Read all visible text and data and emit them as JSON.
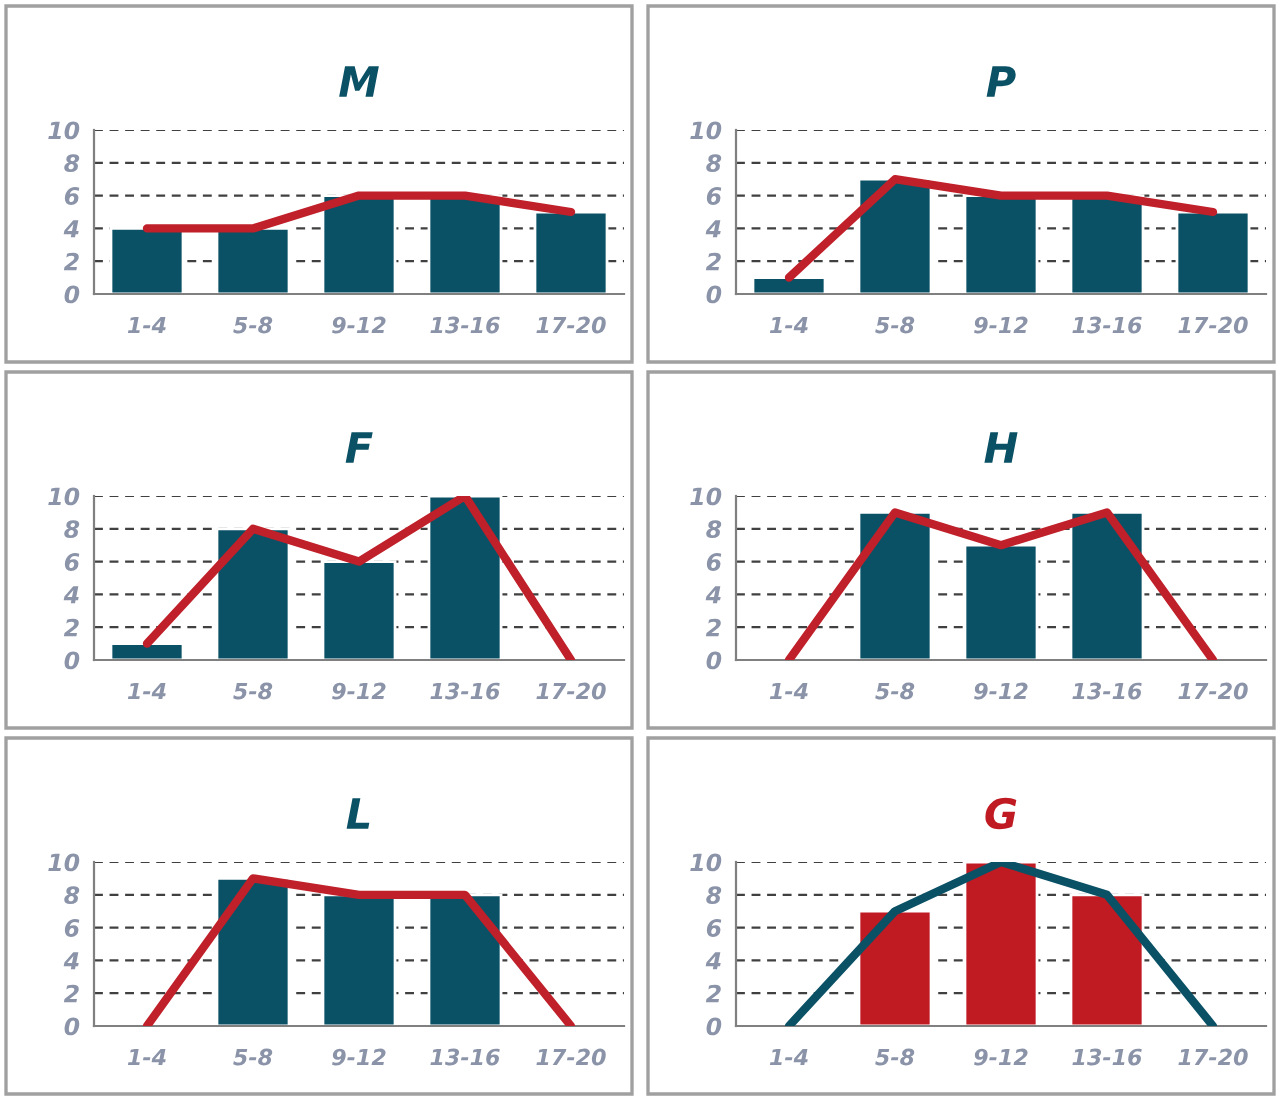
{
  "chart_data": [
    {
      "type": "bar",
      "title": "M",
      "categories": [
        "1-4",
        "5-8",
        "9-12",
        "13-16",
        "17-20"
      ],
      "ylim": [
        0,
        10
      ],
      "yticks": [
        0,
        2,
        4,
        6,
        8,
        10
      ],
      "grid": "y",
      "series": [
        {
          "color": "#0b5166",
          "values": [
            4,
            4,
            6,
            6,
            5
          ]
        },
        {
          "type": "line",
          "color": "#c0202a",
          "values": [
            4,
            4,
            6,
            6,
            5
          ]
        }
      ]
    },
    {
      "type": "bar",
      "title": "P",
      "categories": [
        "1-4",
        "5-8",
        "9-12",
        "13-16",
        "17-20"
      ],
      "ylim": [
        0,
        10
      ],
      "yticks": [
        0,
        2,
        4,
        6,
        8,
        10
      ],
      "grid": "y",
      "series": [
        {
          "color": "#0b5166",
          "values": [
            1,
            7,
            6,
            6,
            5
          ]
        },
        {
          "type": "line",
          "color": "#c0202a",
          "values": [
            1,
            7,
            6,
            6,
            5
          ]
        }
      ]
    },
    {
      "type": "bar",
      "title": "F",
      "categories": [
        "1-4",
        "5-8",
        "9-12",
        "13-16",
        "17-20"
      ],
      "ylim": [
        0,
        10
      ],
      "yticks": [
        0,
        2,
        4,
        6,
        8,
        10
      ],
      "grid": "y",
      "series": [
        {
          "color": "#0b5166",
          "values": [
            1,
            8,
            6,
            10,
            null
          ]
        },
        {
          "type": "line",
          "color": "#c0202a",
          "values": [
            1,
            8,
            6,
            10,
            0
          ]
        }
      ]
    },
    {
      "type": "bar",
      "title": "H",
      "categories": [
        "1-4",
        "5-8",
        "9-12",
        "13-16",
        "17-20"
      ],
      "ylim": [
        0,
        10
      ],
      "yticks": [
        0,
        2,
        4,
        6,
        8,
        10
      ],
      "grid": "y",
      "series": [
        {
          "color": "#0b5166",
          "values": [
            null,
            9,
            7,
            9,
            null
          ]
        },
        {
          "type": "line",
          "color": "#c0202a",
          "values": [
            0,
            9,
            7,
            9,
            0
          ]
        }
      ]
    },
    {
      "type": "bar",
      "title": "L",
      "categories": [
        "1-4",
        "5-8",
        "9-12",
        "13-16",
        "17-20"
      ],
      "ylim": [
        0,
        10
      ],
      "yticks": [
        0,
        2,
        4,
        6,
        8,
        10
      ],
      "grid": "y",
      "series": [
        {
          "color": "#0b5166",
          "values": [
            null,
            9,
            8,
            8,
            null
          ]
        },
        {
          "type": "line",
          "color": "#c0202a",
          "values": [
            0,
            9,
            8,
            8,
            0
          ]
        }
      ]
    },
    {
      "type": "bar",
      "title": "G",
      "categories": [
        "1-4",
        "5-8",
        "9-12",
        "13-16",
        "17-20"
      ],
      "ylim": [
        0,
        10
      ],
      "yticks": [
        0,
        2,
        4,
        6,
        8,
        10
      ],
      "grid": "y",
      "series": [
        {
          "color": "#c01a22",
          "values": [
            null,
            7,
            10,
            8,
            null
          ]
        },
        {
          "type": "line",
          "color": "#0b5166",
          "values": [
            0,
            7,
            10,
            8,
            0
          ]
        }
      ]
    }
  ]
}
